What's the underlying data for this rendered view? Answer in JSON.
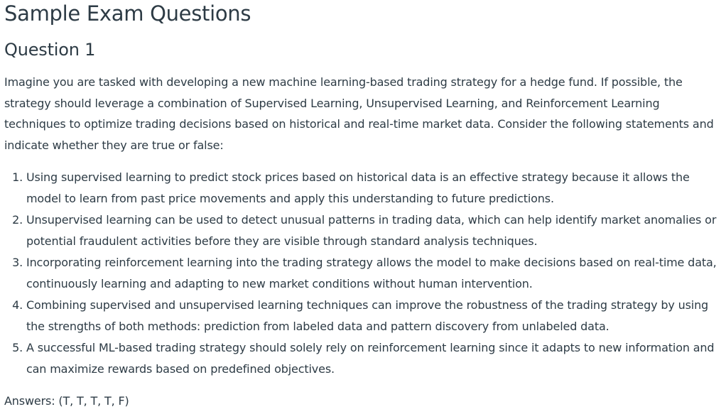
{
  "page": {
    "title": "Sample Exam Questions",
    "question_heading": "Question 1"
  },
  "question": {
    "intro": "Imagine you are tasked with developing a new machine learning-based trading strategy for a hedge fund. If possible, the strategy should leverage a combination of Supervised Learning, Unsupervised Learning, and Reinforcement Learning techniques to optimize trading decisions based on historical and real-time market data. Consider the following statements and indicate whether they are true or false:",
    "statements": [
      "Using supervised learning to predict stock prices based on historical data is an effective strategy because it allows the model to learn from past price movements and apply this understanding to future predictions.",
      "Unsupervised learning can be used to detect unusual patterns in trading data, which can help identify market anomalies or potential fraudulent activities before they are visible through standard analysis techniques.",
      "Incorporating reinforcement learning into the trading strategy allows the model to make decisions based on real-time data, continuously learning and adapting to new market conditions without human intervention.",
      "Combining supervised and unsupervised learning techniques can improve the robustness of the trading strategy by using the strengths of both methods: prediction from labeled data and pattern discovery from unlabeled data.",
      "A successful ML-based trading strategy should solely rely on reinforcement learning since it adapts to new information and can maximize rewards based on predefined objectives."
    ],
    "answers": "Answers: (T, T, T, T, F)"
  }
}
